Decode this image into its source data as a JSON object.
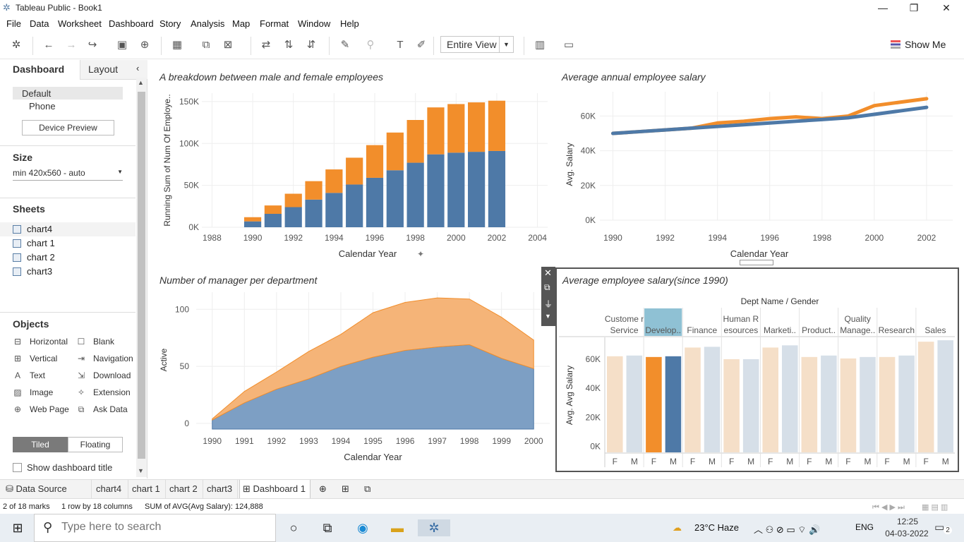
{
  "window": {
    "title": "Tableau Public - Book1"
  },
  "menu": [
    "File",
    "Data",
    "Worksheet",
    "Dashboard",
    "Story",
    "Analysis",
    "Map",
    "Format",
    "Window",
    "Help"
  ],
  "toolbar": {
    "view_select": "Entire View",
    "show_me": "Show Me"
  },
  "left_panel": {
    "tabs": [
      "Dashboard",
      "Layout"
    ],
    "device": {
      "default": "Default",
      "phone": "Phone",
      "preview_button": "Device Preview"
    },
    "size": {
      "title": "Size",
      "value": "min 420x560 - auto"
    },
    "sheets_title": "Sheets",
    "sheets": [
      "chart4",
      "chart 1",
      "chart 2",
      "chart3"
    ],
    "objects_title": "Objects",
    "objects": [
      {
        "label": "Horizontal",
        "icon": "horizontal-icon"
      },
      {
        "label": "Blank",
        "icon": "blank-icon"
      },
      {
        "label": "Vertical",
        "icon": "vertical-icon"
      },
      {
        "label": "Navigation",
        "icon": "navigation-icon"
      },
      {
        "label": "Text",
        "icon": "text-icon"
      },
      {
        "label": "Download",
        "icon": "download-icon"
      },
      {
        "label": "Image",
        "icon": "image-icon"
      },
      {
        "label": "Extension",
        "icon": "extension-icon"
      },
      {
        "label": "Web Page",
        "icon": "web-page-icon"
      },
      {
        "label": "Ask Data",
        "icon": "ask-data-icon"
      }
    ],
    "layout_toggle": [
      "Tiled",
      "Floating"
    ],
    "show_title": "Show dashboard title"
  },
  "chart_data": [
    {
      "type": "bar",
      "title": "A breakdown between male and female employees",
      "xlabel": "Calendar Year",
      "ylabel": "Running Sum of Num Of Employe..",
      "x_ticks": [
        "1988",
        "1990",
        "1992",
        "1994",
        "1996",
        "1998",
        "2000",
        "2002",
        "2004"
      ],
      "y_ticks": [
        "0K",
        "50K",
        "100K",
        "150K"
      ],
      "ylim": [
        0,
        150000
      ],
      "categories": [
        1990,
        1991,
        1992,
        1993,
        1994,
        1995,
        1996,
        1997,
        1998,
        1999,
        2000,
        2001,
        2002
      ],
      "series": [
        {
          "values": [
            7000,
            16000,
            24000,
            33000,
            41000,
            51000,
            59000,
            68000,
            77000,
            87000,
            89000,
            90000,
            91000
          ],
          "color": "#4e79a7"
        },
        {
          "values": [
            5000,
            10000,
            16000,
            22000,
            28000,
            32000,
            39000,
            45000,
            51000,
            56000,
            58000,
            59000,
            60000
          ],
          "color": "#f28e2b"
        }
      ]
    },
    {
      "type": "line",
      "title": "Average annual employee salary",
      "xlabel": "Calendar Year",
      "ylabel": "Avg. Salary",
      "x_ticks": [
        "1990",
        "1992",
        "1994",
        "1996",
        "1998",
        "2000",
        "2002"
      ],
      "y_ticks": [
        "0K",
        "20K",
        "40K",
        "60K"
      ],
      "ylim": [
        0,
        70000
      ],
      "x": [
        1990,
        1991,
        1992,
        1993,
        1994,
        1995,
        1996,
        1997,
        1998,
        1999,
        2000,
        2001,
        2002
      ],
      "series": [
        {
          "values": [
            50000,
            51000,
            52000,
            53000,
            56000,
            57000,
            58500,
            59500,
            58500,
            60000,
            66000,
            68000,
            70000
          ],
          "color": "#f28e2b"
        },
        {
          "values": [
            50000,
            51000,
            52000,
            53000,
            54000,
            55000,
            56000,
            57000,
            58000,
            59000,
            61000,
            63000,
            65000
          ],
          "color": "#4e79a7"
        }
      ]
    },
    {
      "type": "area",
      "title": "Number of manager per department",
      "xlabel": "Calendar Year",
      "ylabel": "Active",
      "x_ticks": [
        "1990",
        "1991",
        "1992",
        "1993",
        "1994",
        "1995",
        "1996",
        "1997",
        "1998",
        "1999",
        "2000"
      ],
      "y_ticks": [
        "0",
        "50",
        "100"
      ],
      "ylim": [
        -5,
        115
      ],
      "x": [
        1990,
        1991,
        1992,
        1993,
        1994,
        1995,
        1996,
        1997,
        1998,
        1999,
        2000
      ],
      "series": [
        {
          "values": [
            3,
            18,
            30,
            39,
            50,
            58,
            64,
            67,
            69,
            57,
            48
          ],
          "color": "#4e79a7"
        },
        {
          "values": [
            1,
            10,
            15,
            24,
            28,
            39,
            42,
            43,
            40,
            36,
            25
          ],
          "color": "#f28e2b"
        }
      ]
    },
    {
      "type": "bar",
      "title": "Average employee salary(since 1990)",
      "header": "Dept Name / Gender",
      "ylabel": "Avg. Avg Salary",
      "y_ticks": [
        "0K",
        "20K",
        "40K",
        "60K"
      ],
      "ylim": [
        -4000,
        75000
      ],
      "departments": [
        "Custome r Service",
        "Develop..",
        "Finance",
        "Human R esources",
        "Marketi..",
        "Product..",
        "Quality Manage..",
        "Research",
        "Sales"
      ],
      "genders": [
        "F",
        "M"
      ],
      "values": [
        [
          62000,
          62500
        ],
        [
          61500,
          62000
        ],
        [
          68000,
          68500
        ],
        [
          60000,
          60000
        ],
        [
          68000,
          69500
        ],
        [
          61500,
          62500
        ],
        [
          60500,
          61500
        ],
        [
          61500,
          62500
        ],
        [
          72000,
          73000
        ]
      ],
      "selected_department": "Develop.."
    }
  ],
  "chart_labels": {
    "c1": {
      "title": "A breakdown between male and female employees",
      "xlabel": "Calendar Year",
      "ylabel": "Running Sum of Num Of Employe..",
      "ticks_x": [
        "1988",
        "1990",
        "1992",
        "1994",
        "1996",
        "1998",
        "2000",
        "2002",
        "2004"
      ],
      "ticks_y": [
        "0K",
        "50K",
        "100K",
        "150K"
      ]
    },
    "c2": {
      "title": "Average annual employee salary",
      "xlabel": "Calendar Year",
      "ylabel": "Avg. Salary",
      "ticks_x": [
        "1990",
        "1992",
        "1994",
        "1996",
        "1998",
        "2000",
        "2002"
      ],
      "ticks_y": [
        "0K",
        "20K",
        "40K",
        "60K"
      ]
    },
    "c3": {
      "title": "Number of manager per department",
      "xlabel": "Calendar Year",
      "ylabel": "Active"
    },
    "c4": {
      "title": "Average employee salary(since 1990)",
      "header": "Dept Name / Gender",
      "ylabel": "Avg. Avg Salary"
    }
  },
  "tabs": {
    "data_source": "Data Source",
    "items": [
      "chart4",
      "chart 1",
      "chart 2",
      "chart3"
    ],
    "active": "Dashboard 1"
  },
  "status": {
    "marks": "2 of 18 marks",
    "rows": "1 row by 18 columns",
    "sum": "SUM of AVG(Avg Salary): 124,888"
  },
  "taskbar": {
    "search_placeholder": "Type here to search",
    "weather": "23°C  Haze",
    "lang": "ENG",
    "time": "12:25",
    "date": "04-03-2022",
    "notifications": "2"
  }
}
